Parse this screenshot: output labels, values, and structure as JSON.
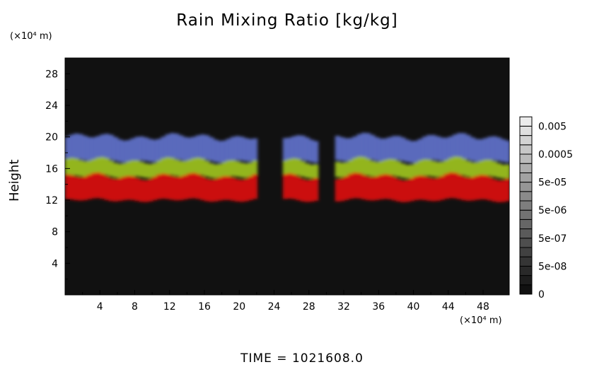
{
  "chart_data": {
    "type": "heatmap",
    "title": "Rain Mixing Ratio [kg/kg]",
    "ylabel": "Height",
    "x_unit": "(×10⁴ m)",
    "y_unit": "(×10⁴ m)",
    "xlim": [
      0,
      51
    ],
    "ylim": [
      0,
      30
    ],
    "x_ticks": [
      "4",
      "8",
      "12",
      "16",
      "20",
      "24",
      "28",
      "32",
      "36",
      "40",
      "44",
      "48"
    ],
    "y_ticks": [
      "4",
      "8",
      "12",
      "16",
      "20",
      "24",
      "28"
    ],
    "colorbar": {
      "labels": [
        "0",
        "5e-08",
        "5e-07",
        "5e-06",
        "5e-05",
        "0.0005",
        "0.005"
      ],
      "scale": "log"
    },
    "background": "#111111",
    "layers": [
      {
        "color": "#d81010",
        "y_range": [
          12,
          15
        ]
      },
      {
        "color": "#9cc020",
        "y_range": [
          15,
          17
        ]
      },
      {
        "color": "#6070c8",
        "y_range": [
          17,
          20
        ]
      }
    ],
    "gaps_x": [
      [
        22,
        25
      ],
      [
        29,
        31
      ]
    ],
    "footer": "TIME = 1021608.0"
  }
}
